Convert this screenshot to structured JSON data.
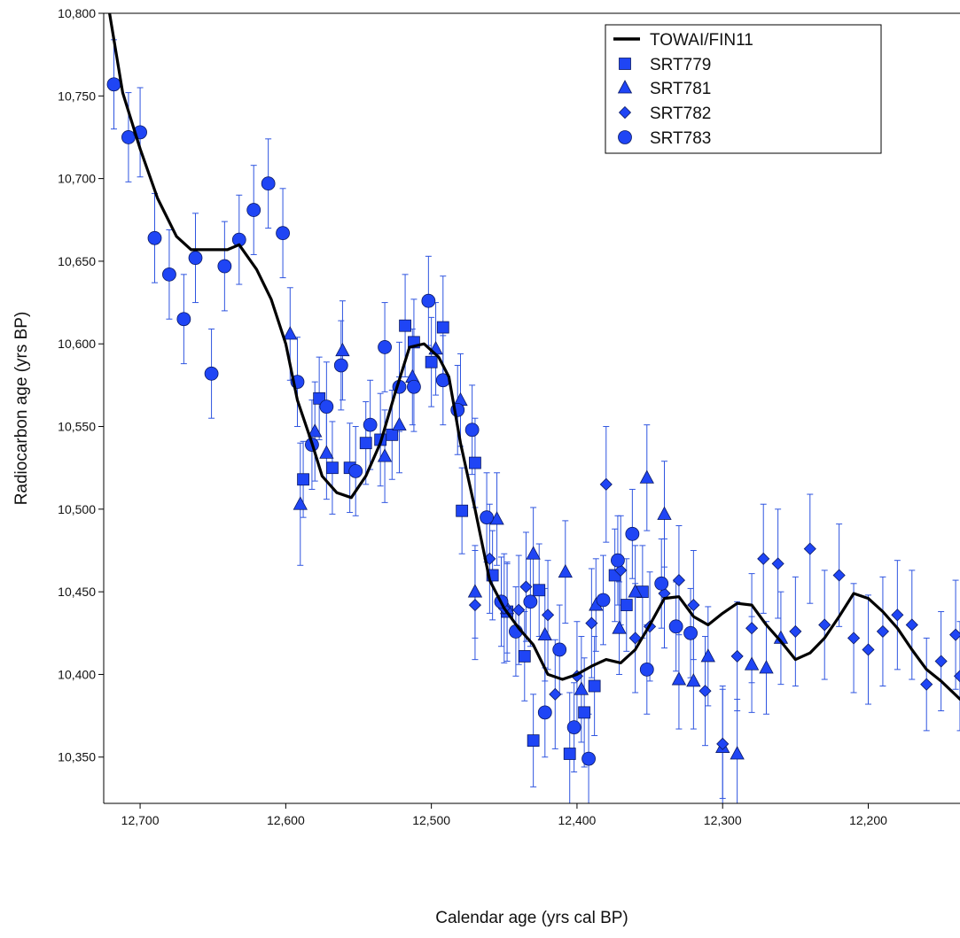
{
  "chart_data": {
    "type": "scatter",
    "xlabel": "Calendar age (yrs cal BP)",
    "ylabel": "Radiocarbon age (yrs BP)",
    "xlim": [
      12725,
      12137
    ],
    "ylim": [
      10322,
      10800
    ],
    "x_reversed": true,
    "grid": false,
    "legend_position": "top-right",
    "x_ticks": [
      {
        "value": 12700,
        "label": "12,700"
      },
      {
        "value": 12600,
        "label": "12,600"
      },
      {
        "value": 12500,
        "label": "12,500"
      },
      {
        "value": 12400,
        "label": "12,400"
      },
      {
        "value": 12300,
        "label": "12,300"
      },
      {
        "value": 12200,
        "label": "12,200"
      }
    ],
    "y_ticks": [
      {
        "value": 10350,
        "label": "10,350"
      },
      {
        "value": 10400,
        "label": "10,400"
      },
      {
        "value": 10450,
        "label": "10,450"
      },
      {
        "value": 10500,
        "label": "10,500"
      },
      {
        "value": 10550,
        "label": "10,550"
      },
      {
        "value": 10600,
        "label": "10,600"
      },
      {
        "value": 10650,
        "label": "10,650"
      },
      {
        "value": 10700,
        "label": "10,700"
      },
      {
        "value": 10750,
        "label": "10,750"
      },
      {
        "value": 10800,
        "label": "10,800"
      }
    ],
    "colors": {
      "marker_fill": "#1f45f5",
      "marker_stroke": "#0b1a66",
      "errorbar": "#2f55e0",
      "curve": "#000000"
    },
    "curve": {
      "name": "TOWAI/FIN11",
      "points": [
        [
          12721,
          10800
        ],
        [
          12712,
          10752
        ],
        [
          12700,
          10718
        ],
        [
          12688,
          10688
        ],
        [
          12675,
          10665
        ],
        [
          12665,
          10657
        ],
        [
          12650,
          10657
        ],
        [
          12640,
          10657
        ],
        [
          12632,
          10660
        ],
        [
          12620,
          10645
        ],
        [
          12610,
          10627
        ],
        [
          12600,
          10600
        ],
        [
          12592,
          10566
        ],
        [
          12582,
          10540
        ],
        [
          12575,
          10520
        ],
        [
          12565,
          10510
        ],
        [
          12555,
          10507
        ],
        [
          12545,
          10520
        ],
        [
          12535,
          10540
        ],
        [
          12525,
          10570
        ],
        [
          12515,
          10598
        ],
        [
          12505,
          10600
        ],
        [
          12495,
          10592
        ],
        [
          12488,
          10580
        ],
        [
          12480,
          10540
        ],
        [
          12470,
          10500
        ],
        [
          12460,
          10457
        ],
        [
          12450,
          10440
        ],
        [
          12440,
          10428
        ],
        [
          12430,
          10418
        ],
        [
          12420,
          10400
        ],
        [
          12410,
          10397
        ],
        [
          12400,
          10400
        ],
        [
          12390,
          10405
        ],
        [
          12380,
          10409
        ],
        [
          12370,
          10407
        ],
        [
          12360,
          10415
        ],
        [
          12350,
          10430
        ],
        [
          12340,
          10446
        ],
        [
          12330,
          10447
        ],
        [
          12320,
          10435
        ],
        [
          12310,
          10430
        ],
        [
          12300,
          10437
        ],
        [
          12290,
          10443
        ],
        [
          12280,
          10442
        ],
        [
          12270,
          10430
        ],
        [
          12260,
          10420
        ],
        [
          12250,
          10409
        ],
        [
          12240,
          10413
        ],
        [
          12230,
          10422
        ],
        [
          12220,
          10435
        ],
        [
          12210,
          10449
        ],
        [
          12200,
          10446
        ],
        [
          12190,
          10438
        ],
        [
          12180,
          10428
        ],
        [
          12170,
          10415
        ],
        [
          12160,
          10403
        ],
        [
          12150,
          10396
        ],
        [
          12137,
          10385
        ]
      ]
    },
    "series": [
      {
        "name": "SRT779",
        "marker": "square",
        "points": [
          [
            12588,
            10518,
            23
          ],
          [
            12577,
            10567,
            25
          ],
          [
            12568,
            10525,
            28
          ],
          [
            12556,
            10525,
            27
          ],
          [
            12545,
            10540,
            25
          ],
          [
            12535,
            10542,
            28
          ],
          [
            12527,
            10545,
            27
          ],
          [
            12518,
            10611,
            31
          ],
          [
            12512,
            10601,
            26
          ],
          [
            12500,
            10589,
            27
          ],
          [
            12492,
            10610,
            31
          ],
          [
            12479,
            10499,
            26
          ],
          [
            12470,
            10528,
            27
          ],
          [
            12458,
            10460,
            27
          ],
          [
            12448,
            10438,
            30
          ],
          [
            12436,
            10411,
            27
          ],
          [
            12430,
            10360,
            28
          ],
          [
            12426,
            10451,
            28
          ],
          [
            12405,
            10352,
            37
          ],
          [
            12395,
            10377,
            33
          ],
          [
            12388,
            10393,
            30
          ],
          [
            12374,
            10460,
            28
          ],
          [
            12366,
            10442,
            28
          ],
          [
            12355,
            10450,
            28
          ]
        ]
      },
      {
        "name": "SRT781",
        "marker": "triangle",
        "points": [
          [
            12597,
            10606,
            28
          ],
          [
            12590,
            10503,
            37
          ],
          [
            12580,
            10547,
            30
          ],
          [
            12572,
            10534,
            28
          ],
          [
            12561,
            10596,
            30
          ],
          [
            12532,
            10532,
            28
          ],
          [
            12522,
            10551,
            29
          ],
          [
            12513,
            10580,
            29
          ],
          [
            12497,
            10597,
            28
          ],
          [
            12480,
            10566,
            28
          ],
          [
            12470,
            10450,
            28
          ],
          [
            12455,
            10494,
            28
          ],
          [
            12448,
            10440,
            27
          ],
          [
            12430,
            10473,
            28
          ],
          [
            12422,
            10424,
            28
          ],
          [
            12408,
            10462,
            31
          ],
          [
            12397,
            10391,
            32
          ],
          [
            12387,
            10442,
            28
          ],
          [
            12371,
            10428,
            28
          ],
          [
            12360,
            10450,
            28
          ],
          [
            12352,
            10519,
            32
          ],
          [
            12340,
            10497,
            32
          ],
          [
            12330,
            10397,
            30
          ],
          [
            12320,
            10396,
            29
          ],
          [
            12310,
            10411,
            30
          ],
          [
            12300,
            10356,
            37
          ],
          [
            12290,
            10352,
            33
          ],
          [
            12280,
            10406,
            29
          ],
          [
            12270,
            10404,
            28
          ],
          [
            12260,
            10422,
            28
          ]
        ]
      },
      {
        "name": "SRT782",
        "marker": "diamond",
        "points": [
          [
            12470,
            10442,
            33
          ],
          [
            12460,
            10470,
            33
          ],
          [
            12450,
            10440,
            33
          ],
          [
            12440,
            10439,
            33
          ],
          [
            12435,
            10453,
            33
          ],
          [
            12420,
            10436,
            33
          ],
          [
            12415,
            10388,
            33
          ],
          [
            12400,
            10399,
            33
          ],
          [
            12390,
            10431,
            33
          ],
          [
            12380,
            10515,
            35
          ],
          [
            12370,
            10463,
            33
          ],
          [
            12360,
            10422,
            33
          ],
          [
            12350,
            10429,
            33
          ],
          [
            12340,
            10449,
            33
          ],
          [
            12330,
            10457,
            33
          ],
          [
            12320,
            10442,
            33
          ],
          [
            12312,
            10390,
            33
          ],
          [
            12300,
            10358,
            33
          ],
          [
            12290,
            10411,
            33
          ],
          [
            12280,
            10428,
            33
          ],
          [
            12272,
            10470,
            33
          ],
          [
            12262,
            10467,
            33
          ],
          [
            12250,
            10426,
            33
          ],
          [
            12240,
            10476,
            33
          ],
          [
            12230,
            10430,
            33
          ],
          [
            12220,
            10460,
            31
          ],
          [
            12210,
            10422,
            33
          ],
          [
            12200,
            10415,
            33
          ],
          [
            12190,
            10426,
            33
          ],
          [
            12180,
            10436,
            33
          ],
          [
            12170,
            10430,
            33
          ],
          [
            12160,
            10394,
            28
          ],
          [
            12150,
            10408,
            30
          ],
          [
            12140,
            10424,
            33
          ],
          [
            12137,
            10399,
            33
          ]
        ]
      },
      {
        "name": "SRT783",
        "marker": "circle",
        "points": [
          [
            12718,
            10757,
            27
          ],
          [
            12708,
            10725,
            27
          ],
          [
            12700,
            10728,
            27
          ],
          [
            12690,
            10664,
            27
          ],
          [
            12680,
            10642,
            27
          ],
          [
            12670,
            10615,
            27
          ],
          [
            12662,
            10652,
            27
          ],
          [
            12651,
            10582,
            27
          ],
          [
            12642,
            10647,
            27
          ],
          [
            12632,
            10663,
            27
          ],
          [
            12622,
            10681,
            27
          ],
          [
            12612,
            10697,
            27
          ],
          [
            12602,
            10667,
            27
          ],
          [
            12592,
            10577,
            27
          ],
          [
            12582,
            10539,
            27
          ],
          [
            12572,
            10562,
            27
          ],
          [
            12562,
            10587,
            27
          ],
          [
            12552,
            10523,
            27
          ],
          [
            12542,
            10551,
            27
          ],
          [
            12532,
            10598,
            27
          ],
          [
            12522,
            10574,
            27
          ],
          [
            12512,
            10574,
            27
          ],
          [
            12502,
            10626,
            27
          ],
          [
            12492,
            10578,
            27
          ],
          [
            12482,
            10560,
            27
          ],
          [
            12472,
            10548,
            27
          ],
          [
            12462,
            10495,
            27
          ],
          [
            12452,
            10444,
            27
          ],
          [
            12442,
            10426,
            27
          ],
          [
            12432,
            10444,
            27
          ],
          [
            12422,
            10377,
            27
          ],
          [
            12412,
            10415,
            27
          ],
          [
            12402,
            10368,
            27
          ],
          [
            12392,
            10349,
            27
          ],
          [
            12382,
            10445,
            27
          ],
          [
            12372,
            10469,
            27
          ],
          [
            12362,
            10485,
            27
          ],
          [
            12352,
            10403,
            27
          ],
          [
            12342,
            10455,
            27
          ],
          [
            12332,
            10429,
            27
          ],
          [
            12322,
            10425,
            27
          ]
        ]
      }
    ]
  }
}
